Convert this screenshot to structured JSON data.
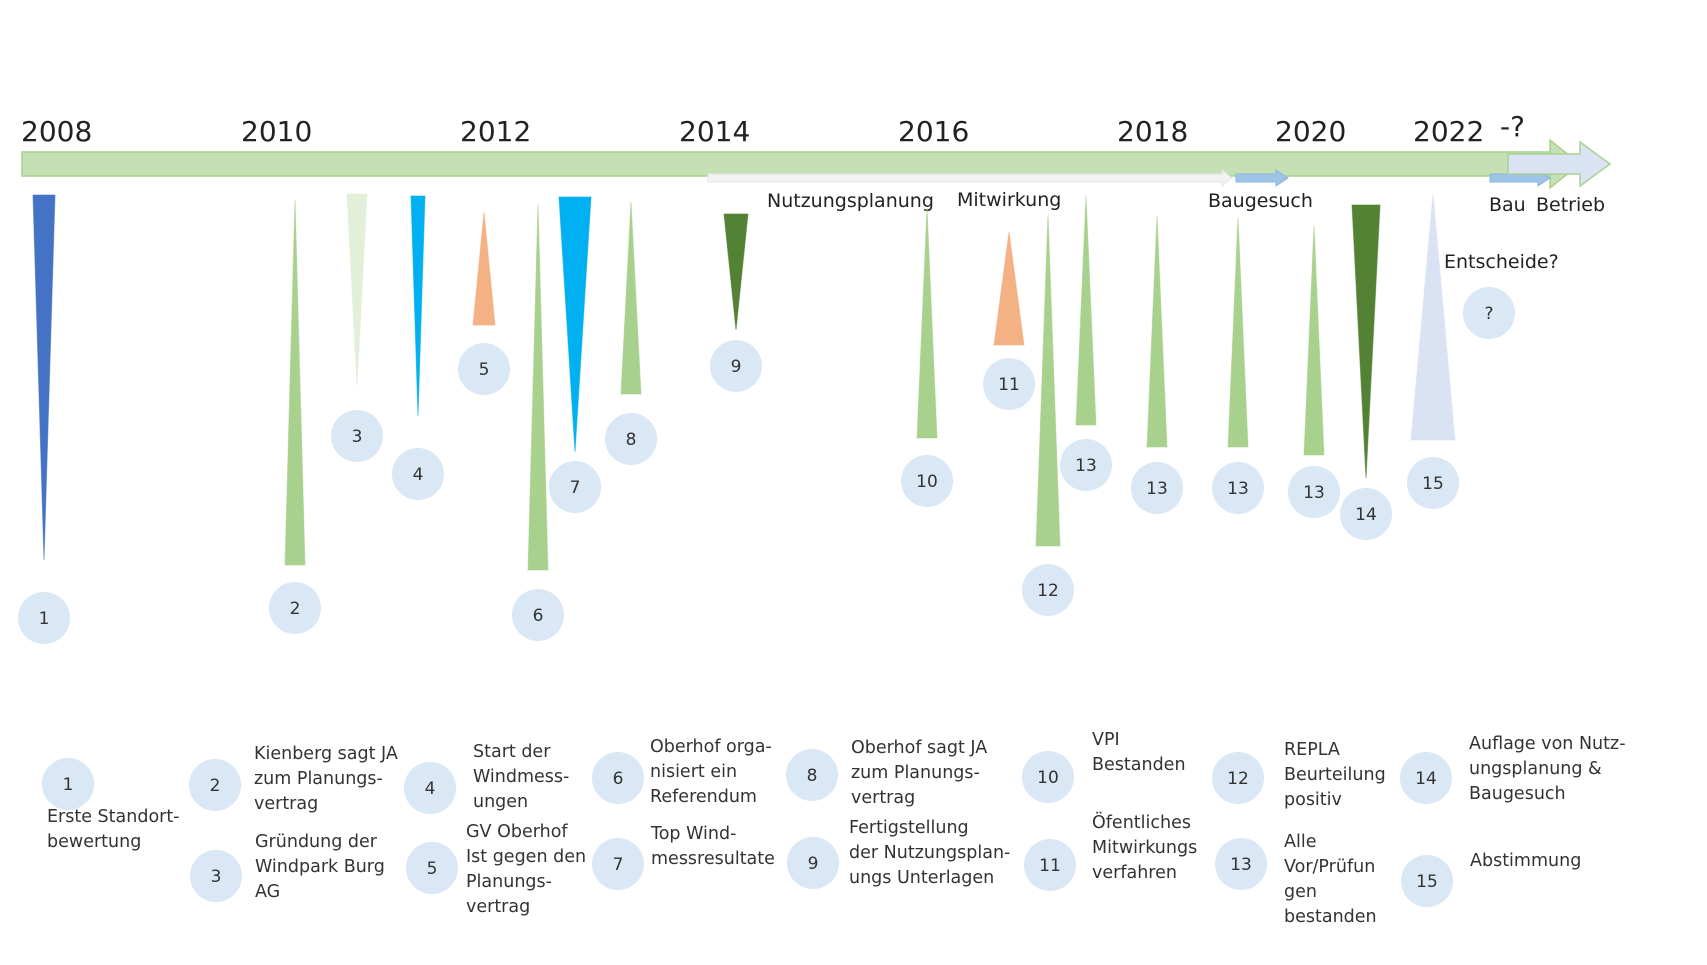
{
  "colors": {
    "main_arrow": "#c5e0b4",
    "main_arrow_stroke": "#a9d18e",
    "circle_fill": "#dae7f4",
    "dark_blue": "#4472c4",
    "light_blue": "#00b0f0",
    "green": "#a9d18e",
    "pale_green": "#e2efd9",
    "dark_green": "#548235",
    "orange": "#f4b183",
    "pale_blue": "#dae3f3",
    "phase_white": "#f2f2f2",
    "phase_blue": "#9dc3e6"
  },
  "years": [
    "2008",
    "2010",
    "2012",
    "2014",
    "2016",
    "2018",
    "2020",
    "2022",
    "-?"
  ],
  "phases": {
    "nutzungsplanung": "Nutzungsplanung",
    "mitwirkung": "Mitwirkung",
    "baugesuch": "Baugesuch",
    "bau": "Bau",
    "betrieb": "Betrieb",
    "entscheide": "Entscheide?"
  },
  "events": [
    {
      "label": "1",
      "color": "dark_blue",
      "direction": "down"
    },
    {
      "label": "2",
      "color": "green",
      "direction": "up"
    },
    {
      "label": "3",
      "color": "pale_green",
      "direction": "down"
    },
    {
      "label": "4",
      "color": "light_blue",
      "direction": "down"
    },
    {
      "label": "5",
      "color": "orange",
      "direction": "up"
    },
    {
      "label": "6",
      "color": "green",
      "direction": "up"
    },
    {
      "label": "7",
      "color": "light_blue",
      "direction": "down"
    },
    {
      "label": "8",
      "color": "green",
      "direction": "up"
    },
    {
      "label": "9",
      "color": "dark_green",
      "direction": "down"
    },
    {
      "label": "10",
      "color": "green",
      "direction": "up"
    },
    {
      "label": "11",
      "color": "orange",
      "direction": "up"
    },
    {
      "label": "12",
      "color": "green",
      "direction": "up"
    },
    {
      "label": "13",
      "color": "green",
      "direction": "up"
    },
    {
      "label": "13",
      "color": "green",
      "direction": "up"
    },
    {
      "label": "13",
      "color": "green",
      "direction": "up"
    },
    {
      "label": "13",
      "color": "green",
      "direction": "up"
    },
    {
      "label": "14",
      "color": "dark_green",
      "direction": "down"
    },
    {
      "label": "15",
      "color": "pale_blue",
      "direction": "up"
    },
    {
      "label": "?",
      "color": "none",
      "direction": "none"
    }
  ],
  "legend": [
    {
      "num": "1",
      "text": "Erste Standort-\nbewertung"
    },
    {
      "num": "2",
      "text": "Kienberg sagt JA\nzum Planungs-\nvertrag"
    },
    {
      "num": "3",
      "text": "Gründung der\nWindpark Burg\nAG"
    },
    {
      "num": "4",
      "text": "Start der\nWindmess-\nungen"
    },
    {
      "num": "5",
      "text": "GV Oberhof\nIst gegen den\nPlanungs-\nvertrag"
    },
    {
      "num": "6",
      "text": "Oberhof orga-\nnisiert ein\nReferendum"
    },
    {
      "num": "7",
      "text": "Top Wind-\nmessresultate"
    },
    {
      "num": "8",
      "text": "Oberhof sagt JA\nzum Planungs-\nvertrag"
    },
    {
      "num": "9",
      "text": "Fertigstellung\nder Nutzungsplan-\nungs Unterlagen"
    },
    {
      "num": "10",
      "text": "VPI\nBestanden"
    },
    {
      "num": "11",
      "text": "Öfentliches\nMitwirkungs\nverfahren"
    },
    {
      "num": "12",
      "text": "REPLA\nBeurteilung\npositiv"
    },
    {
      "num": "13",
      "text": "Alle\nVor/Prüfun\ngen\nbestanden"
    },
    {
      "num": "14",
      "text": "Auflage von Nutz-\nungsplanung &\nBaugesuch"
    },
    {
      "num": "15",
      "text": "Abstimmung"
    }
  ]
}
